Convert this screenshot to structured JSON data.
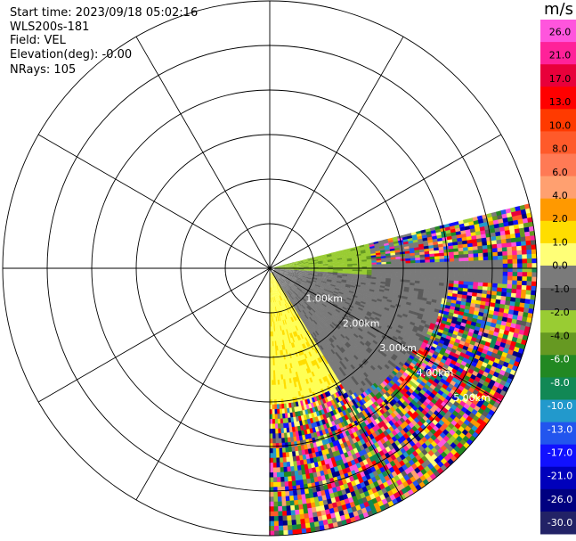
{
  "info": {
    "start_time": "Start time: 2023/09/18 05:02:16",
    "site": "WLS200s-181",
    "field": "Field: VEL",
    "elevation": "Elevation(deg): -0.00",
    "nrays": "NRays: 105"
  },
  "colorbar": {
    "unit": "m/s",
    "ticks": [
      "26.0",
      "21.0",
      "17.0",
      "13.0",
      "10.0",
      "8.0",
      "6.0",
      "4.0",
      "2.0",
      "1.0",
      "0.0",
      "-1.0",
      "-2.0",
      "-4.0",
      "-6.0",
      "-8.0",
      "-10.0",
      "-13.0",
      "-17.0",
      "-21.0",
      "-26.0",
      "-30.0"
    ],
    "colors": [
      "#ff55dd",
      "#ff2299",
      "#e8003a",
      "#ff0000",
      "#ff3a00",
      "#ff5a2a",
      "#ff7a55",
      "#ffa070",
      "#ff9900",
      "#ffdd00",
      "#ffff77",
      "#7a7a7a",
      "#5a5a5a",
      "#99cc33",
      "#669922",
      "#228822",
      "#118855",
      "#2299cc",
      "#2255ee",
      "#1111ff",
      "#0000bb",
      "#000080",
      "#222266"
    ]
  },
  "chart_data": {
    "type": "ppi",
    "field": "VEL",
    "unit": "m/s",
    "nrays": 105,
    "elevation_deg": -0.0,
    "sector_azimuth_deg": [
      76,
      180
    ],
    "range_rings_km": [
      1.0,
      2.0,
      3.0,
      4.0,
      5.0
    ],
    "range_ring_labels": [
      "1.00km",
      "2.00km",
      "3.00km",
      "4.00km",
      "5.00km"
    ],
    "radial_spokes_deg": [
      0,
      30,
      60,
      90,
      120,
      150,
      180,
      210,
      240,
      270,
      300,
      330
    ],
    "max_range_km": 5.0
  }
}
